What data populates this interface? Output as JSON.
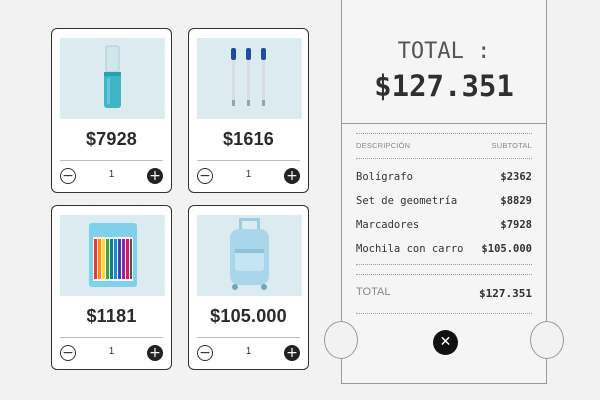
{
  "products": [
    {
      "name": "glue-stick",
      "price": "$7928",
      "qty": "1",
      "icon": "glue-stick-icon"
    },
    {
      "name": "pens",
      "price": "$1616",
      "qty": "1",
      "icon": "pens-icon"
    },
    {
      "name": "markers",
      "price": "$1181",
      "qty": "1",
      "icon": "markers-icon"
    },
    {
      "name": "backpack",
      "price": "$105.000",
      "qty": "1",
      "icon": "backpack-icon"
    }
  ],
  "controls": {
    "minus_icon": "minus-icon",
    "plus_icon": "plus-icon",
    "minus": "−",
    "plus": "+"
  },
  "receipt": {
    "title": "TOTAL :",
    "total": "$127.351",
    "col_description": "DESCRIPCIÓN",
    "col_subtotal": "SUBTOTAL",
    "items": [
      {
        "name": "Bolígrafo",
        "subtotal": "$2362"
      },
      {
        "name": "Set de geometría",
        "subtotal": "$8829"
      },
      {
        "name": "Marcadores",
        "subtotal": "$7928"
      },
      {
        "name": "Mochila con carro",
        "subtotal": "$105.000"
      }
    ],
    "sum_label": "TOTAL",
    "sum_value": "$127.351",
    "close": "✕"
  },
  "colors": {
    "background": "#f2f2f2",
    "card": "#ffffff",
    "image_bg": "#dcebf0",
    "dark": "#222222"
  }
}
